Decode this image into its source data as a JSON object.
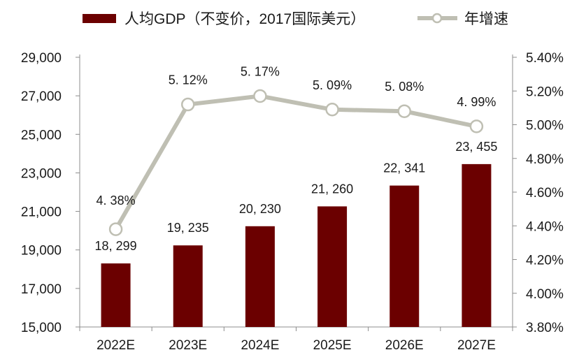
{
  "chart_data": {
    "type": "bar",
    "title": "",
    "categories": [
      "2022E",
      "2023E",
      "2024E",
      "2025E",
      "2026E",
      "2027E"
    ],
    "series": [
      {
        "name": "人均GDP（不变价，2017国际美元）",
        "type": "bar",
        "axis": "left",
        "color": "#6b0000",
        "values": [
          18299,
          19235,
          20230,
          21260,
          22341,
          23455
        ],
        "labels": [
          "18, 299",
          "19, 235",
          "20, 230",
          "21, 260",
          "22, 341",
          "23, 455"
        ]
      },
      {
        "name": "年增速",
        "type": "line",
        "axis": "right",
        "color": "#bfbfb3",
        "values": [
          4.38,
          5.12,
          5.17,
          5.09,
          5.08,
          4.99
        ],
        "labels": [
          "4. 38%",
          "5. 12%",
          "5. 17%",
          "5. 09%",
          "5. 08%",
          "4. 99%"
        ]
      }
    ],
    "left_axis": {
      "ylim": [
        15000,
        29000
      ],
      "ticks": [
        15000,
        17000,
        19000,
        21000,
        23000,
        25000,
        27000,
        29000
      ],
      "tick_labels": [
        "15,000",
        "17,000",
        "19,000",
        "21,000",
        "23,000",
        "25,000",
        "27,000",
        "29,000"
      ]
    },
    "right_axis": {
      "ylim": [
        3.8,
        5.4
      ],
      "ticks": [
        3.8,
        4.0,
        4.2,
        4.4,
        4.6,
        4.8,
        5.0,
        5.2,
        5.4
      ],
      "tick_labels": [
        "3.80%",
        "4.00%",
        "4.20%",
        "4.40%",
        "4.60%",
        "4.80%",
        "5.00%",
        "5.20%",
        "5.40%"
      ]
    },
    "legend": {
      "position": "top",
      "entries": [
        "人均GDP（不变价，2017国际美元）",
        "年增速"
      ]
    },
    "grid": false
  }
}
